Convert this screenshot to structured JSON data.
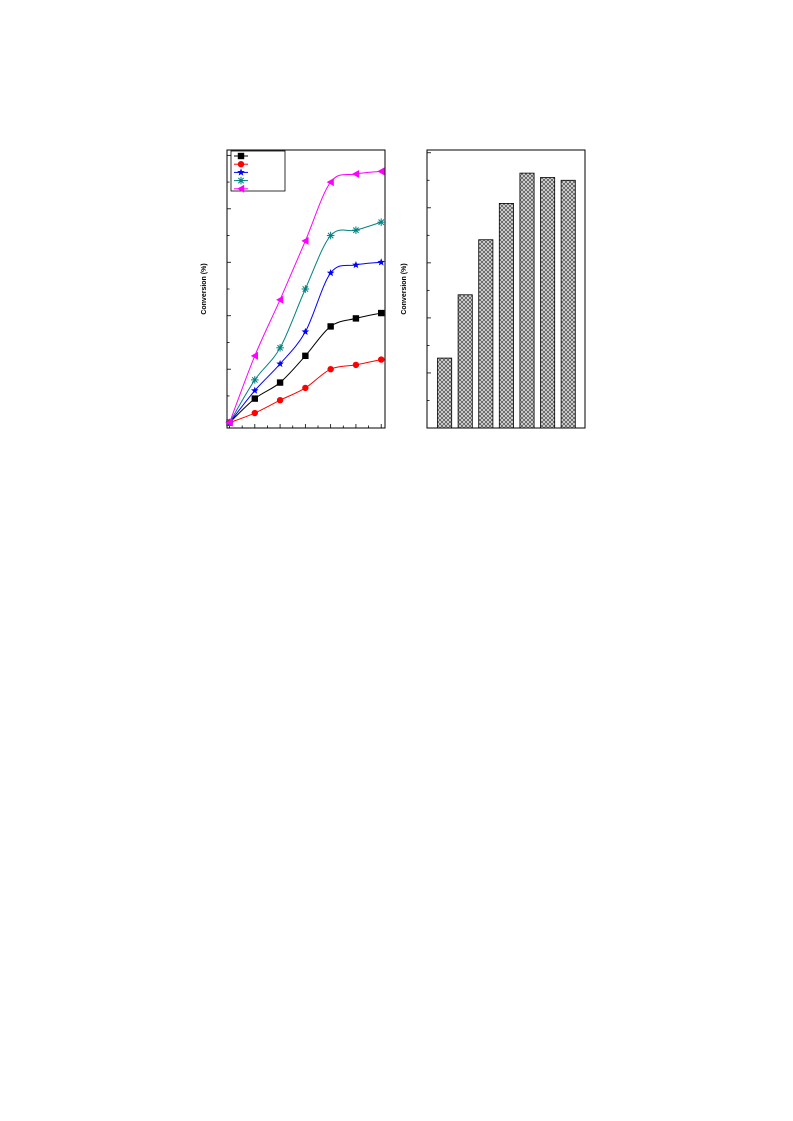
{
  "charts": [
    {
      "type": "line",
      "title": "",
      "xlabel": "",
      "ylabel": "Conversion (%)",
      "x": [
        0,
        1,
        2,
        3,
        4,
        5,
        6
      ],
      "xlim": [
        -0.1,
        6.15
      ],
      "ylim": [
        -0.1,
        5.1
      ],
      "grid": false,
      "legend": "top-left",
      "series": [
        {
          "values": [
            0,
            0.45,
            0.75,
            1.25,
            1.8,
            1.95,
            2.05
          ],
          "color": "#000000",
          "marker": "square"
        },
        {
          "values": [
            0,
            0.18,
            0.42,
            0.65,
            1.0,
            1.08,
            1.18
          ],
          "color": "#ff0000",
          "marker": "circle"
        },
        {
          "values": [
            0,
            0.6,
            1.1,
            1.7,
            2.8,
            2.95,
            3.0
          ],
          "color": "#0000ff",
          "marker": "star"
        },
        {
          "values": [
            0,
            0.8,
            1.4,
            2.5,
            3.5,
            3.6,
            3.75
          ],
          "color": "#008080",
          "marker": "asterisk"
        },
        {
          "values": [
            0,
            1.25,
            2.3,
            3.4,
            4.5,
            4.65,
            4.7
          ],
          "color": "#ff00ff",
          "marker": "triangle-left"
        }
      ]
    },
    {
      "type": "bar",
      "title": "",
      "xlabel": "",
      "ylabel": "Conversion (%)",
      "categories": [
        "",
        "",
        "",
        "",
        "",
        "",
        ""
      ],
      "values": [
        1.27,
        2.42,
        3.42,
        4.08,
        4.63,
        4.55,
        4.5
      ],
      "ylim": [
        0,
        5.05
      ],
      "fill_pattern": "crosshatch",
      "grid": false
    }
  ]
}
